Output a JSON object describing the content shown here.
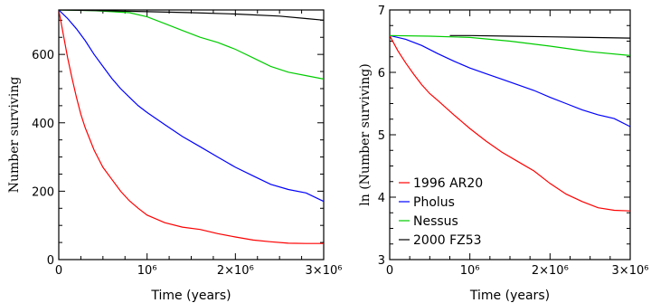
{
  "chart_data": [
    {
      "type": "line",
      "xlabel": "Time (years)",
      "ylabel": "Number surviving",
      "xlim": [
        0,
        3000000
      ],
      "ylim": [
        0,
        730
      ],
      "xticks": [
        {
          "value": 0,
          "label": "0"
        },
        {
          "value": 1000000,
          "label": "10⁶"
        },
        {
          "value": 2000000,
          "label": "2×10⁶"
        },
        {
          "value": 3000000,
          "label": "3×10⁶"
        }
      ],
      "yticks": [
        {
          "value": 0,
          "label": "0"
        },
        {
          "value": 200,
          "label": "200"
        },
        {
          "value": 400,
          "label": "400"
        },
        {
          "value": 600,
          "label": "600"
        }
      ],
      "series": [
        {
          "name": "1996 AR20",
          "color": "#ff0000",
          "x": [
            0,
            50000,
            100000,
            150000,
            200000,
            250000,
            300000,
            400000,
            500000,
            600000,
            700000,
            800000,
            900000,
            1000000,
            1200000,
            1400000,
            1600000,
            1800000,
            2000000,
            2200000,
            2400000,
            2600000,
            2800000,
            3000000
          ],
          "y": [
            730,
            660,
            590,
            530,
            475,
            425,
            385,
            320,
            270,
            235,
            200,
            172,
            150,
            130,
            108,
            95,
            88,
            76,
            66,
            57,
            52,
            48,
            47,
            47
          ]
        },
        {
          "name": "Pholus",
          "color": "#0000ff",
          "x": [
            0,
            100000,
            200000,
            300000,
            400000,
            500000,
            600000,
            700000,
            800000,
            900000,
            1000000,
            1200000,
            1400000,
            1600000,
            1800000,
            2000000,
            2200000,
            2400000,
            2600000,
            2800000,
            3000000
          ],
          "y": [
            730,
            705,
            675,
            640,
            600,
            565,
            530,
            500,
            475,
            450,
            430,
            395,
            360,
            330,
            300,
            270,
            245,
            220,
            205,
            195,
            170
          ]
        },
        {
          "name": "Nessus",
          "color": "#00cc00",
          "x": [
            0,
            400000,
            800000,
            1000000,
            1200000,
            1400000,
            1600000,
            1800000,
            2000000,
            2200000,
            2400000,
            2600000,
            2800000,
            3000000
          ],
          "y": [
            730,
            728,
            722,
            710,
            690,
            670,
            650,
            635,
            615,
            590,
            565,
            548,
            538,
            528
          ]
        },
        {
          "name": "2000 FZ53",
          "color": "#000000",
          "x": [
            0,
            500000,
            1000000,
            1500000,
            2000000,
            2500000,
            2800000,
            3000000
          ],
          "y": [
            730,
            728,
            725,
            722,
            718,
            712,
            705,
            700
          ]
        }
      ]
    },
    {
      "type": "line",
      "xlabel": "Time (years)",
      "ylabel": "ln (Number surviving)",
      "xlim": [
        0,
        3000000
      ],
      "ylim": [
        3,
        7
      ],
      "xticks": [
        {
          "value": 0,
          "label": "0"
        },
        {
          "value": 1000000,
          "label": "10⁶"
        },
        {
          "value": 2000000,
          "label": "2×10⁶"
        },
        {
          "value": 3000000,
          "label": "3×10⁶"
        }
      ],
      "yticks": [
        {
          "value": 3,
          "label": "3"
        },
        {
          "value": 4,
          "label": "4"
        },
        {
          "value": 5,
          "label": "5"
        },
        {
          "value": 6,
          "label": "6"
        },
        {
          "value": 7,
          "label": "7"
        }
      ],
      "legend": {
        "position": "lower-left",
        "entries": [
          "1996 AR20",
          "Pholus",
          "Nessus",
          "2000 FZ53"
        ]
      },
      "series": [
        {
          "name": "1996 AR20",
          "color": "#ff0000",
          "x": [
            0,
            100000,
            200000,
            300000,
            400000,
            500000,
            600000,
            800000,
            1000000,
            1200000,
            1400000,
            1600000,
            1800000,
            2000000,
            2200000,
            2400000,
            2600000,
            2800000,
            3000000
          ],
          "y": [
            6.59,
            6.35,
            6.15,
            5.97,
            5.8,
            5.66,
            5.55,
            5.32,
            5.1,
            4.9,
            4.72,
            4.57,
            4.42,
            4.22,
            4.05,
            3.93,
            3.83,
            3.79,
            3.78
          ]
        },
        {
          "name": "Pholus",
          "color": "#0000ff",
          "x": [
            0,
            200000,
            400000,
            600000,
            800000,
            1000000,
            1200000,
            1400000,
            1600000,
            1800000,
            2000000,
            2200000,
            2400000,
            2600000,
            2800000,
            3000000
          ],
          "y": [
            6.59,
            6.53,
            6.43,
            6.3,
            6.18,
            6.07,
            5.98,
            5.89,
            5.8,
            5.71,
            5.6,
            5.5,
            5.4,
            5.32,
            5.26,
            5.13
          ]
        },
        {
          "name": "Nessus",
          "color": "#00cc00",
          "x": [
            0,
            500000,
            1000000,
            1500000,
            2000000,
            2500000,
            3000000
          ],
          "y": [
            6.59,
            6.58,
            6.56,
            6.5,
            6.42,
            6.33,
            6.27
          ]
        },
        {
          "name": "2000 FZ53",
          "color": "#000000",
          "x": [
            750000,
            1000000,
            1500000,
            2000000,
            2500000,
            3000000
          ],
          "y": [
            6.59,
            6.59,
            6.58,
            6.57,
            6.56,
            6.55
          ]
        }
      ]
    }
  ]
}
